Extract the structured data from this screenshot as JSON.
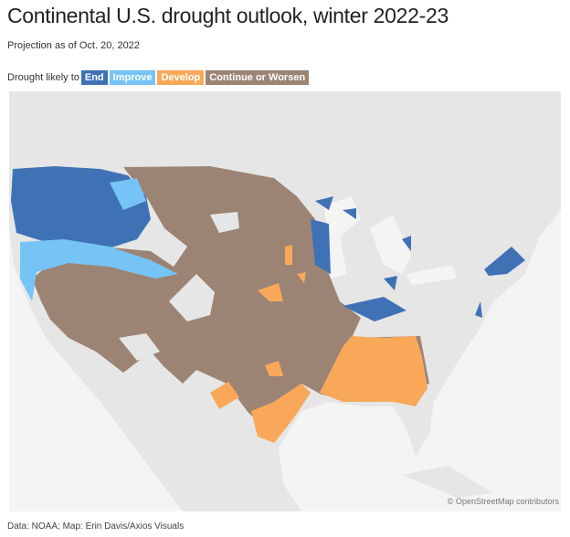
{
  "title": "Continental U.S. drought outlook, winter 2022-23",
  "subtitle": "Projection as of Oct. 20, 2022",
  "legend": {
    "label": "Drought likely to",
    "items": [
      {
        "label": "End",
        "color": "#3f72b5"
      },
      {
        "label": "Improve",
        "color": "#75c4f5"
      },
      {
        "label": "Develop",
        "color": "#f9a85a"
      },
      {
        "label": "Continue or Worsen",
        "color": "#9c8474"
      }
    ]
  },
  "map_credit": "© OpenStreetMap contributors",
  "source": "Data: NOAA; Map: Erin Davis/Axios Visuals"
}
